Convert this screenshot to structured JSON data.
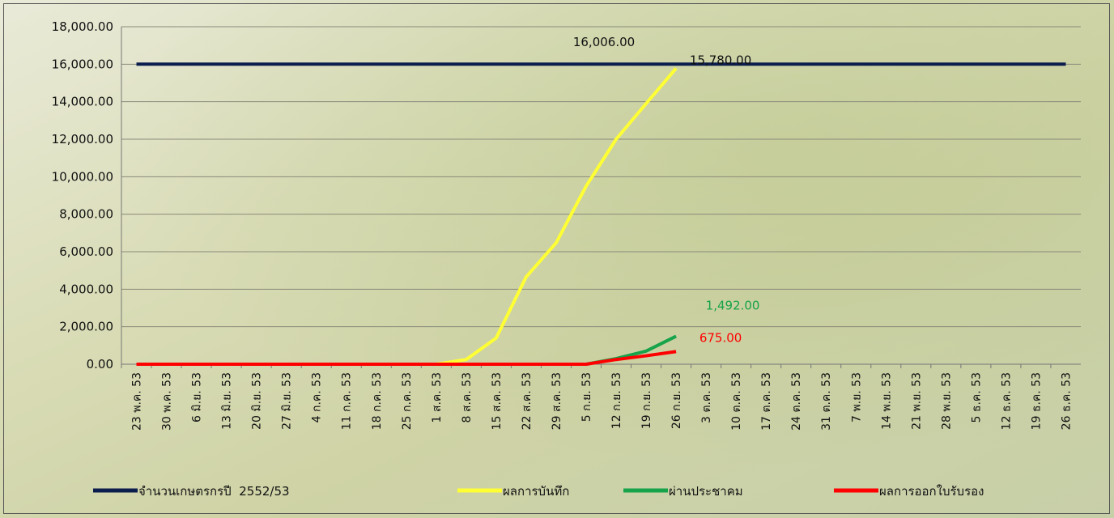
{
  "chart_data": {
    "type": "line",
    "categories": [
      "23 พ.ค. 53",
      "30 พ.ค. 53",
      "6 มิ.ย. 53",
      "13 มิ.ย. 53",
      "20 มิ.ย. 53",
      "27 มิ.ย. 53",
      "4 ก.ค. 53",
      "11 ก.ค. 53",
      "18 ก.ค. 53",
      "25 ก.ค. 53",
      "1 ส.ค. 53",
      "8 ส.ค. 53",
      "15 ส.ค. 53",
      "22 ส.ค. 53",
      "29 ส.ค. 53",
      "5 ก.ย. 53",
      "12 ก.ย. 53",
      "19 ก.ย. 53",
      "26 ก.ย. 53",
      "3 ต.ค. 53",
      "10 ต.ค. 53",
      "17 ต.ค. 53",
      "24 ต.ค. 53",
      "31 ต.ค. 53",
      "7 พ.ย. 53",
      "14 พ.ย. 53",
      "21 พ.ย. 53",
      "28 พ.ย. 53",
      "5 ธ.ค. 53",
      "12 ธ.ค. 53",
      "19 ธ.ค. 53",
      "26 ธ.ค. 53"
    ],
    "series": [
      {
        "name": "จำนวนเกษตรกรปี  2552/53",
        "color": "#0b1d4d",
        "values": [
          16006,
          16006,
          16006,
          16006,
          16006,
          16006,
          16006,
          16006,
          16006,
          16006,
          16006,
          16006,
          16006,
          16006,
          16006,
          16006,
          16006,
          16006,
          16006,
          16006,
          16006,
          16006,
          16006,
          16006,
          16006,
          16006,
          16006,
          16006,
          16006,
          16006,
          16006,
          16006
        ],
        "value_labels": [
          null,
          null,
          null,
          null,
          null,
          null,
          null,
          null,
          null,
          null,
          null,
          null,
          null,
          null,
          null,
          null,
          "16,006.00",
          null,
          null,
          null,
          null,
          null,
          null,
          null,
          null,
          null,
          null,
          null,
          null,
          null,
          null,
          null
        ]
      },
      {
        "name": "ผลการบันทึก",
        "color": "#ffff33",
        "values": [
          0,
          0,
          0,
          0,
          0,
          0,
          0,
          0,
          0,
          0,
          0,
          250,
          1400,
          4660,
          6470,
          9500,
          12000,
          13900,
          15780,
          null,
          null,
          null,
          null,
          null,
          null,
          null,
          null,
          null,
          null,
          null,
          null,
          null
        ],
        "value_labels": [
          null,
          null,
          null,
          null,
          null,
          null,
          null,
          null,
          null,
          null,
          null,
          null,
          null,
          null,
          null,
          null,
          null,
          null,
          "15,780.00",
          null,
          null,
          null,
          null,
          null,
          null,
          null,
          null,
          null,
          null,
          null,
          null,
          null
        ]
      },
      {
        "name": "ผ่านประชาคม",
        "color": "#16a34a",
        "values": [
          0,
          0,
          0,
          0,
          0,
          0,
          0,
          0,
          0,
          0,
          0,
          0,
          0,
          0,
          0,
          0,
          300,
          700,
          1492,
          null,
          null,
          null,
          null,
          null,
          null,
          null,
          null,
          null,
          null,
          null,
          null,
          null
        ],
        "value_labels": [
          null,
          null,
          null,
          null,
          null,
          null,
          null,
          null,
          null,
          null,
          null,
          null,
          null,
          null,
          null,
          null,
          null,
          null,
          "1,492.00",
          null,
          null,
          null,
          null,
          null,
          null,
          null,
          null,
          null,
          null,
          null,
          null,
          null
        ]
      },
      {
        "name": "ผลการออกใบรับรอง",
        "color": "#ff0000",
        "values": [
          0,
          0,
          0,
          0,
          0,
          0,
          0,
          0,
          0,
          0,
          0,
          0,
          0,
          0,
          0,
          0,
          250,
          450,
          675,
          null,
          null,
          null,
          null,
          null,
          null,
          null,
          null,
          null,
          null,
          null,
          null,
          null
        ],
        "value_labels": [
          null,
          null,
          null,
          null,
          null,
          null,
          null,
          null,
          null,
          null,
          null,
          null,
          null,
          null,
          null,
          null,
          null,
          null,
          "675.00",
          null,
          null,
          null,
          null,
          null,
          null,
          null,
          null,
          null,
          null,
          null,
          null,
          null
        ]
      }
    ],
    "ylim": [
      0,
      18000
    ],
    "yticks": [
      {
        "value": 0,
        "label": "0.00"
      },
      {
        "value": 2000,
        "label": "2,000.00"
      },
      {
        "value": 4000,
        "label": "4,000.00"
      },
      {
        "value": 6000,
        "label": "6,000.00"
      },
      {
        "value": 8000,
        "label": "8,000.00"
      },
      {
        "value": 10000,
        "label": "10,000.00"
      },
      {
        "value": 12000,
        "label": "12,000.00"
      },
      {
        "value": 14000,
        "label": "14,000.00"
      },
      {
        "value": 16000,
        "label": "16,000.00"
      },
      {
        "value": 18000,
        "label": "18,000.00"
      }
    ],
    "grid": true,
    "legend": "bottom"
  }
}
